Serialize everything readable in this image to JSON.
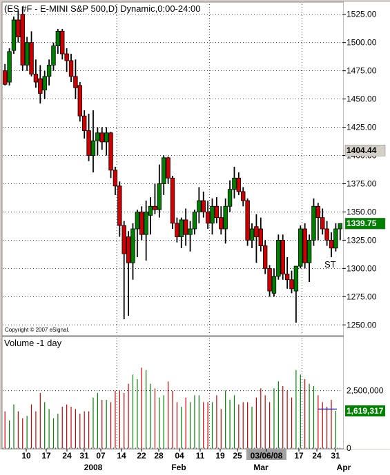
{
  "chart_data": [
    {
      "type": "candlestick",
      "title": "(ES #F - E-MINI S&P 500,D) Dynamic,0:00-24:00",
      "copyright": "Copyright © 2007 eSignal.",
      "annotation": "ST",
      "y_ticks": [
        "1525.00",
        "1500.00",
        "1475.00",
        "1450.00",
        "1425.00",
        "1400.00",
        "1375.00",
        "1350.00",
        "1325.00",
        "1300.00",
        "1275.00",
        "1250.00"
      ],
      "ylim": [
        1241,
        1534
      ],
      "markers": [
        {
          "label": "1404.44",
          "value": 1404.44,
          "color": "#d4d0c8",
          "text_color": "#000000"
        },
        {
          "label": "1339.75",
          "value": 1339.75,
          "color": "#008000",
          "text_color": "#ffffff"
        }
      ],
      "candles": [
        [
          1475,
          1481,
          1462,
          1463
        ],
        [
          1465,
          1495,
          1462,
          1492
        ],
        [
          1493,
          1523,
          1490,
          1520
        ],
        [
          1520,
          1528,
          1500,
          1505
        ],
        [
          1525,
          1532,
          1475,
          1480
        ],
        [
          1480,
          1505,
          1475,
          1500
        ],
        [
          1500,
          1510,
          1470,
          1472
        ],
        [
          1472,
          1485,
          1460,
          1465
        ],
        [
          1468,
          1480,
          1446,
          1455
        ],
        [
          1458,
          1475,
          1450,
          1470
        ],
        [
          1470,
          1485,
          1462,
          1480
        ],
        [
          1480,
          1500,
          1475,
          1497
        ],
        [
          1497,
          1512,
          1490,
          1510
        ],
        [
          1510,
          1512,
          1485,
          1490
        ],
        [
          1490,
          1495,
          1474,
          1484
        ],
        [
          1484,
          1490,
          1465,
          1470
        ],
        [
          1470,
          1485,
          1450,
          1460
        ],
        [
          1462,
          1465,
          1430,
          1435
        ],
        [
          1435,
          1440,
          1415,
          1422
        ],
        [
          1422,
          1437,
          1395,
          1400
        ],
        [
          1400,
          1440,
          1385,
          1413
        ],
        [
          1413,
          1425,
          1400,
          1420
        ],
        [
          1420,
          1425,
          1405,
          1412
        ],
        [
          1412,
          1425,
          1400,
          1420
        ],
        [
          1420,
          1421,
          1380,
          1387
        ],
        [
          1387,
          1390,
          1365,
          1373
        ],
        [
          1373,
          1377,
          1328,
          1338
        ],
        [
          1338,
          1342,
          1255,
          1313
        ],
        [
          1328,
          1333,
          1258,
          1305
        ],
        [
          1305,
          1340,
          1290,
          1335
        ],
        [
          1335,
          1352,
          1310,
          1350
        ],
        [
          1350,
          1355,
          1325,
          1330
        ],
        [
          1330,
          1360,
          1307,
          1350
        ],
        [
          1347,
          1363,
          1330,
          1355
        ],
        [
          1355,
          1375,
          1348,
          1352
        ],
        [
          1352,
          1392,
          1345,
          1375
        ],
        [
          1375,
          1400,
          1365,
          1398
        ],
        [
          1398,
          1399,
          1375,
          1380
        ],
        [
          1380,
          1382,
          1335,
          1340
        ],
        [
          1340,
          1345,
          1323,
          1328
        ],
        [
          1328,
          1345,
          1318,
          1343
        ],
        [
          1343,
          1353,
          1320,
          1330
        ],
        [
          1330,
          1342,
          1315,
          1335
        ],
        [
          1335,
          1352,
          1330,
          1350
        ],
        [
          1350,
          1372,
          1340,
          1360
        ],
        [
          1360,
          1368,
          1345,
          1350
        ],
        [
          1350,
          1360,
          1335,
          1340
        ],
        [
          1340,
          1362,
          1330,
          1355
        ],
        [
          1355,
          1363,
          1340,
          1345
        ],
        [
          1345,
          1355,
          1330,
          1335
        ],
        [
          1335,
          1362,
          1322,
          1355
        ],
        [
          1355,
          1378,
          1350,
          1370
        ],
        [
          1370,
          1390,
          1362,
          1380
        ],
        [
          1380,
          1385,
          1365,
          1368
        ],
        [
          1368,
          1372,
          1355,
          1360
        ],
        [
          1360,
          1362,
          1320,
          1325
        ],
        [
          1325,
          1340,
          1318,
          1335
        ],
        [
          1337,
          1348,
          1305,
          1328
        ],
        [
          1335,
          1345,
          1315,
          1320
        ],
        [
          1320,
          1325,
          1295,
          1300
        ],
        [
          1300,
          1303,
          1275,
          1280
        ],
        [
          1278,
          1300,
          1275,
          1293
        ],
        [
          1293,
          1330,
          1290,
          1325
        ],
        [
          1325,
          1330,
          1290,
          1295
        ],
        [
          1295,
          1310,
          1282,
          1290
        ],
        [
          1290,
          1298,
          1278,
          1282
        ],
        [
          1280,
          1302,
          1252,
          1302
        ],
        [
          1302,
          1338,
          1300,
          1335
        ],
        [
          1335,
          1340,
          1300,
          1305
        ],
        [
          1305,
          1330,
          1288,
          1325
        ],
        [
          1325,
          1362,
          1320,
          1355
        ],
        [
          1355,
          1358,
          1325,
          1345
        ],
        [
          1345,
          1353,
          1330,
          1335
        ],
        [
          1335,
          1342,
          1320,
          1325
        ],
        [
          1325,
          1332,
          1310,
          1318
        ],
        [
          1318,
          1340,
          1315,
          1335
        ],
        [
          1335,
          1338,
          1325,
          1339.75
        ]
      ]
    },
    {
      "type": "bar",
      "title": "Volume -1 day",
      "y_ticks": [
        "2,500,000",
        "0"
      ],
      "ylim": [
        0,
        4200000
      ],
      "markers": [
        {
          "label": "1,619,317",
          "value": 1619317,
          "color": "#008000",
          "text_color": "#ffffff"
        }
      ],
      "values": [
        1600000,
        1200000,
        1900000,
        1600000,
        1300000,
        1400000,
        1900000,
        1600000,
        2400000,
        2000000,
        1700000,
        1300000,
        1500000,
        1800000,
        1900000,
        1800000,
        1700000,
        1500000,
        1600000,
        1600000,
        2200000,
        2400000,
        2100000,
        2100000,
        2000000,
        2500000,
        2500000,
        2400000,
        2800000,
        3200000,
        3000000,
        3500000,
        3400000,
        2800000,
        2600000,
        2200000,
        2300000,
        2900000,
        2500000,
        2000000,
        1800000,
        2200000,
        2000000,
        2300000,
        2300000,
        2000000,
        2000000,
        2000000,
        2300000,
        1700000,
        2500000,
        2100000,
        2300000,
        1900000,
        2000000,
        2000000,
        1800000,
        2200000,
        2600000,
        2300000,
        2000000,
        2600000,
        2900000,
        2700000,
        2500000,
        2200000,
        3400000,
        3200000,
        3000000,
        2800000,
        2700000,
        2300000,
        2000000,
        1800000,
        2100000,
        1619317
      ],
      "reference_line": 1700000
    }
  ],
  "x_ticks": [
    "10",
    "17",
    "24",
    "31",
    "07",
    "14",
    "22",
    "28",
    "04",
    "11",
    "19",
    "25",
    "03/06/08",
    "17",
    "24",
    "31"
  ],
  "months": [
    "2008",
    "Feb",
    "Mar",
    "Apr"
  ],
  "colors": {
    "up": "#008000",
    "down": "#d00000",
    "grid": "#000000",
    "bg": "#ffffff",
    "frame": "#d4d0c8",
    "highlight": "#a0a0a0",
    "ref_line": "#0000c0"
  }
}
